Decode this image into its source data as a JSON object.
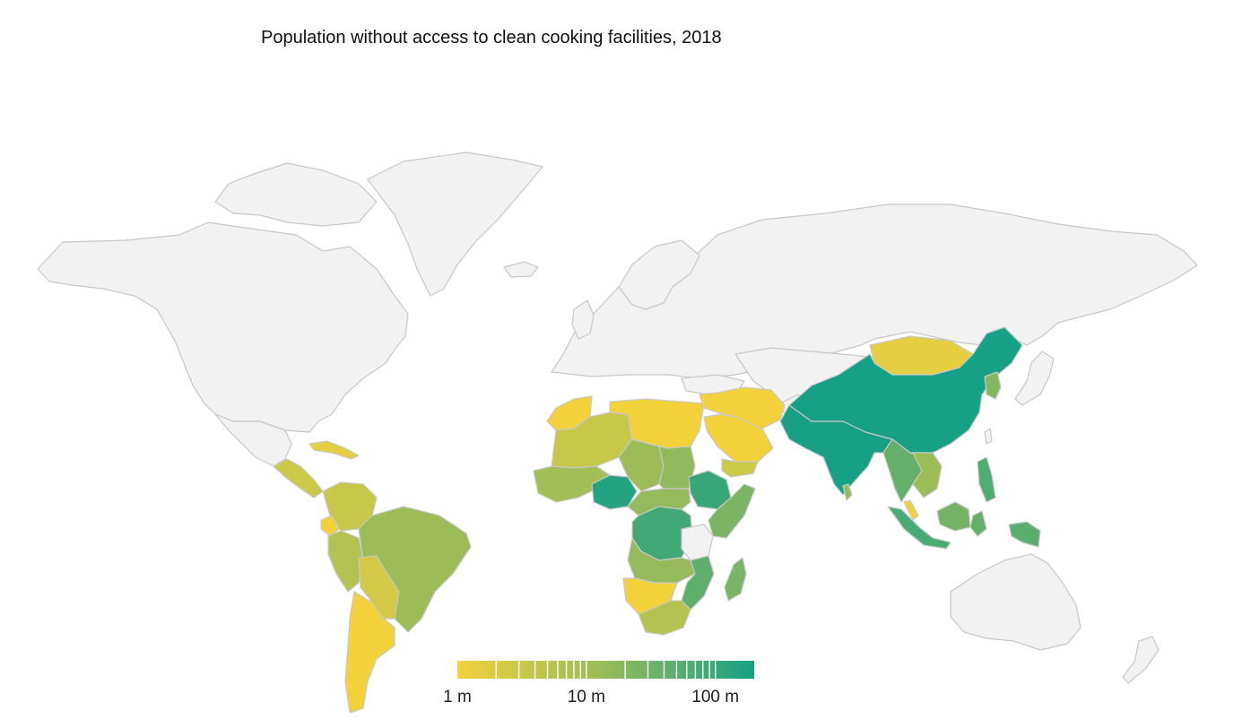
{
  "title": "Population without access to clean cooking facilities, 2018",
  "colors": {
    "no_data": "#f2f2f2",
    "border": "#c8c8c8",
    "scale_low": "#f3d13b",
    "scale_mid": "#96bb5a",
    "scale_high": "#16a085"
  },
  "legend": {
    "type": "log",
    "min": 1,
    "max": 200,
    "ticks": [
      {
        "value": 1,
        "label": "1 m"
      },
      {
        "value": 10,
        "label": "10 m"
      },
      {
        "value": 100,
        "label": "100 m"
      }
    ]
  },
  "regions": [
    {
      "name": "north-america",
      "value": null
    },
    {
      "name": "greenland",
      "value": null
    },
    {
      "name": "canadian-arctic-islands",
      "value": null
    },
    {
      "name": "europe-russia",
      "value": null
    },
    {
      "name": "scandinavia",
      "value": null
    },
    {
      "name": "great-britain",
      "value": null
    },
    {
      "name": "iceland",
      "value": null
    },
    {
      "name": "japan",
      "value": null
    },
    {
      "name": "australia",
      "value": null
    },
    {
      "name": "new-zealand",
      "value": null
    },
    {
      "name": "central-asia",
      "value": null
    },
    {
      "name": "mexico",
      "value": null
    },
    {
      "name": "turkey",
      "value": null
    },
    {
      "name": "afghanistan",
      "value": null
    },
    {
      "name": "central-america",
      "value": 3
    },
    {
      "name": "caribbean",
      "value": 1.5
    },
    {
      "name": "colombia-venezuela",
      "value": 3.5
    },
    {
      "name": "ecuador",
      "value": 0.9
    },
    {
      "name": "peru",
      "value": 6
    },
    {
      "name": "brazil",
      "value": 12
    },
    {
      "name": "bolivia-paraguay",
      "value": 2.5
    },
    {
      "name": "argentina-chile",
      "value": 1
    },
    {
      "name": "west-maghreb",
      "value": 1
    },
    {
      "name": "sahara-west",
      "value": 3.5
    },
    {
      "name": "libya-egypt",
      "value": 0.8
    },
    {
      "name": "west-africa",
      "value": 10
    },
    {
      "name": "nigeria",
      "value": 150
    },
    {
      "name": "sahel-central",
      "value": 12
    },
    {
      "name": "sudan",
      "value": 16
    },
    {
      "name": "ethiopia",
      "value": 100
    },
    {
      "name": "horn-east-africa",
      "value": 25
    },
    {
      "name": "central-africa",
      "value": 15
    },
    {
      "name": "drc",
      "value": 80
    },
    {
      "name": "tanzania",
      "value": null
    },
    {
      "name": "mozambique-malawi",
      "value": 45
    },
    {
      "name": "southern-central-africa",
      "value": 14
    },
    {
      "name": "angola-namibia-botswana",
      "value": 1
    },
    {
      "name": "south-africa",
      "value": 6
    },
    {
      "name": "madagascar",
      "value": 26
    },
    {
      "name": "middle-east",
      "value": 1
    },
    {
      "name": "saudi-gulf",
      "value": 0.8
    },
    {
      "name": "yemen",
      "value": 3
    },
    {
      "name": "mongolia",
      "value": 1.5
    },
    {
      "name": "china",
      "value": 450
    },
    {
      "name": "korea-peninsula",
      "value": 20
    },
    {
      "name": "south-asia",
      "value": 600
    },
    {
      "name": "mainland-southeast-asia",
      "value": 40
    },
    {
      "name": "indochina",
      "value": 12
    },
    {
      "name": "sri-lanka",
      "value": 15
    },
    {
      "name": "malay-peninsula",
      "value": 1
    },
    {
      "name": "philippines",
      "value": 60
    },
    {
      "name": "sumatra",
      "value": 70
    },
    {
      "name": "borneo",
      "value": 30
    },
    {
      "name": "sulawesi",
      "value": 40
    },
    {
      "name": "papua",
      "value": 50
    },
    {
      "name": "taiwan",
      "value": null
    }
  ]
}
